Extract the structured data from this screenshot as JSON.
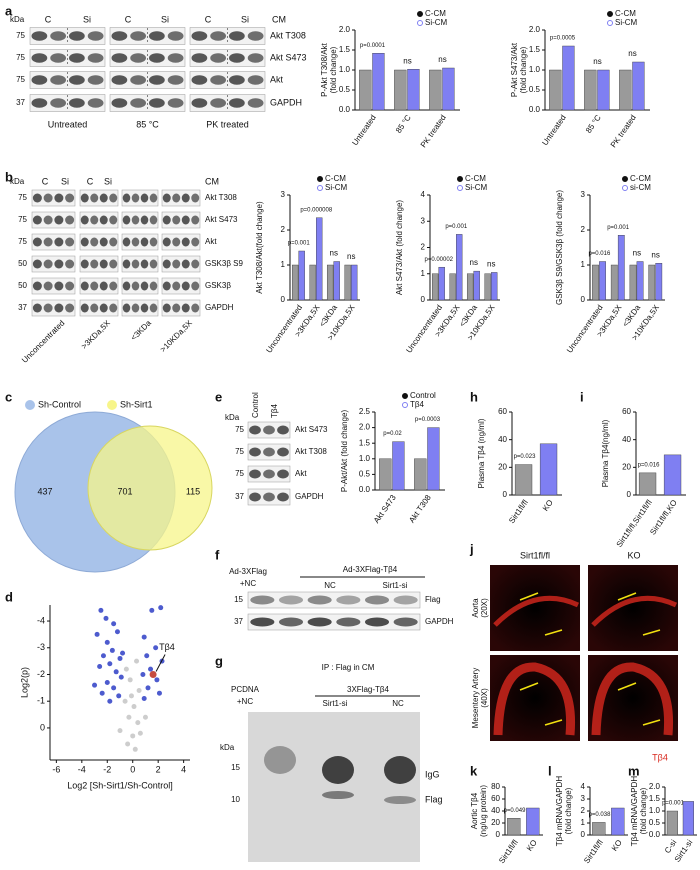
{
  "panels": {
    "a": {
      "label": "a",
      "kda": "kDa",
      "lanes": [
        "C",
        "Si",
        "C",
        "Si",
        "C",
        "Si"
      ],
      "treatment": "CM",
      "markers": [
        "75",
        "75",
        "75",
        "37"
      ],
      "rows": [
        "Akt T308",
        "Akt S473",
        "Akt",
        "GAPDH"
      ],
      "groups": [
        "Untreated",
        "85 °C",
        "PK treated"
      ]
    },
    "b": {
      "label": "b",
      "kda": "kDa",
      "lanes": [
        "C",
        "Si",
        "C",
        "Si"
      ],
      "treatment": "CM",
      "markers": [
        "75",
        "75",
        "75",
        "50",
        "50",
        "37"
      ],
      "rows": [
        "Akt T308",
        "Akt S473",
        "Akt",
        "GSK3β S9",
        "GSK3β",
        "GAPDH"
      ],
      "groups": [
        "Unconcentrated",
        ">3KDa,5X",
        "<3KDa",
        ">10KDa,5X"
      ]
    },
    "c": {
      "label": "c",
      "sets": [
        "Sh-Control",
        "Sh-Sirt1"
      ],
      "counts": [
        "437",
        "701",
        "115"
      ]
    },
    "d": {
      "label": "d"
    },
    "e": {
      "label": "e",
      "kda": "kDa",
      "lanes": [
        "Control",
        "Tβ4"
      ],
      "markers": [
        "75",
        "75",
        "75",
        "37"
      ],
      "rows": [
        "Akt S473",
        "Akt T308",
        "Akt",
        "GAPDH"
      ]
    },
    "f": {
      "label": "f",
      "control": [
        "Ad-3XFlag",
        "+NC"
      ],
      "construct": "Ad-3XFlag-Tβ4",
      "lanes": [
        "NC",
        "Sirt1-si"
      ],
      "markers": [
        "15",
        "37"
      ],
      "rows": [
        "Flag",
        "GAPDH"
      ]
    },
    "g": {
      "label": "g",
      "title": "IP : Flag in CM",
      "control": [
        "PCDNA",
        "+NC"
      ],
      "construct": "3XFlag-Tβ4",
      "lanes": [
        "Sirt1-si",
        "NC"
      ],
      "kda": "kDa",
      "markers": [
        "15",
        "10"
      ],
      "bands": [
        "IgG",
        "Flag"
      ]
    },
    "h": {
      "label": "h"
    },
    "i": {
      "label": "i"
    },
    "j": {
      "label": "j",
      "columns": [
        "Sirt1fl/fl",
        "KO"
      ],
      "rows": [
        [
          "Aorta",
          "(20X)"
        ],
        [
          "Mesentery Artery",
          "(40X)"
        ]
      ],
      "stain": "Tβ4"
    },
    "k": {
      "label": "k"
    },
    "l": {
      "label": "l"
    },
    "m": {
      "label": "m"
    }
  },
  "chart_data": [
    {
      "type": "bar",
      "ylabel": [
        "P-Akt T308/Akt",
        "(fold change)"
      ],
      "categories": [
        "Untreated",
        "85 °C",
        "PK treated"
      ],
      "series": [
        {
          "name": "C-CM",
          "color": "#9a9a9a",
          "values": [
            1.0,
            1.0,
            1.0
          ]
        },
        {
          "name": "Si-CM",
          "color": "#7f7ff2",
          "values": [
            1.42,
            1.02,
            1.05
          ]
        }
      ],
      "ylim": [
        0,
        2
      ],
      "yticks": [
        {
          "value": 0,
          "label": "0.0"
        },
        0.5,
        {
          "value": 1,
          "label": "1.0"
        },
        1.5,
        {
          "value": 2,
          "label": "2.0"
        }
      ],
      "annotations": [
        "p=0.0001",
        "ns",
        "ns"
      ]
    },
    {
      "type": "bar",
      "ylabel": [
        "P-Akt S473/Akt",
        "(fold change)"
      ],
      "categories": [
        "Untreated",
        "85 °C",
        "PK treated"
      ],
      "series": [
        {
          "name": "C-CM",
          "color": "#9a9a9a",
          "values": [
            1.0,
            1.0,
            1.0
          ]
        },
        {
          "name": "Si-CM",
          "color": "#7f7ff2",
          "values": [
            1.6,
            1.0,
            1.2
          ]
        }
      ],
      "ylim": [
        0,
        2
      ],
      "yticks": [
        {
          "value": 0,
          "label": "0.0"
        },
        0.5,
        {
          "value": 1,
          "label": "1.0"
        },
        1.5,
        {
          "value": 2,
          "label": "2.0"
        }
      ],
      "annotations": [
        "p=0.0005",
        "ns",
        "ns"
      ]
    },
    {
      "type": "bar",
      "ylabel": [
        "Akt T308/Akt(fold change)"
      ],
      "categories": [
        "Unconcentrated",
        ">3KDa,5X",
        "<3KDa",
        ">10KDa,5X"
      ],
      "series": [
        {
          "name": "C-CM",
          "color": "#9a9a9a",
          "values": [
            1.0,
            1.0,
            1.0,
            1.0
          ]
        },
        {
          "name": "Si-CM",
          "color": "#7f7ff2",
          "values": [
            1.4,
            2.35,
            1.1,
            1.0
          ]
        }
      ],
      "ylim": [
        0,
        3
      ],
      "yticks": [
        0,
        1,
        2,
        3
      ],
      "annotations": [
        "p=0.001",
        "p=0.000008",
        "ns",
        "ns"
      ]
    },
    {
      "type": "bar",
      "ylabel": [
        "Akt S473/Akt (fold change)"
      ],
      "categories": [
        "Unconcentrated",
        ">3KDa,5X",
        "<3KDa",
        ">10KDa,5X"
      ],
      "series": [
        {
          "name": "C-CM",
          "color": "#9a9a9a",
          "values": [
            1.0,
            1.0,
            1.0,
            1.0
          ]
        },
        {
          "name": "Si-CM",
          "color": "#7f7ff2",
          "values": [
            1.25,
            2.5,
            1.1,
            1.05
          ]
        }
      ],
      "ylim": [
        0,
        4
      ],
      "yticks": [
        0,
        1,
        2,
        3,
        4
      ],
      "annotations": [
        "p=0.00002",
        "p=0.001",
        "ns",
        "ns"
      ]
    },
    {
      "type": "bar",
      "ylabel": [
        "GSK3β S9/GSK3β (fold change)"
      ],
      "categories": [
        "Unconcentrated",
        ">3KDa,5X",
        "<3KDa",
        ">10KDa,5X"
      ],
      "series": [
        {
          "name": "C-CM",
          "color": "#9a9a9a",
          "values": [
            1.0,
            1.0,
            1.0,
            1.0
          ]
        },
        {
          "name": "si-CM",
          "color": "#7f7ff2",
          "values": [
            1.1,
            1.85,
            1.1,
            1.05
          ]
        }
      ],
      "ylim": [
        0,
        3
      ],
      "yticks": [
        0,
        1,
        2,
        3
      ],
      "annotations": [
        "p=0.016",
        "p=0.001",
        "ns",
        "ns"
      ]
    },
    {
      "type": "scatter",
      "xlabel": "Log2 [Sh-Sirt1/Sh-Control]",
      "ylabel": "Log2(p)",
      "xlim": [
        -6.5,
        4.5
      ],
      "xticks": [
        -6,
        -4,
        -2,
        0,
        2,
        4
      ],
      "ylim": [
        1.2,
        -4.6
      ],
      "yticks": [
        -4,
        -3,
        -2,
        -1,
        0
      ],
      "series": [
        {
          "color": "#c8c8c8",
          "x": [
            -0.5,
            0.3,
            -0.2,
            0.5,
            -0.6,
            0.1,
            -0.3,
            0.4,
            0,
            -0.4,
            0.6,
            0.2,
            -0.1,
            -1.0,
            1.0
          ],
          "values": [
            -2.2,
            -2.5,
            -1.8,
            -1.4,
            -1.0,
            -0.8,
            -0.4,
            -0.2,
            0.3,
            0.6,
            0.2,
            0.8,
            -1.2,
            0.1,
            -0.4
          ]
        },
        {
          "color": "#3a49c9",
          "x": [
            -2.5,
            -2.1,
            -1.5,
            -2.8,
            -1.2,
            -2.0,
            -1.6,
            -2.3,
            -1.0,
            -1.8,
            -2.6,
            -1.3,
            -0.9,
            -2.0,
            -1.5,
            -2.4,
            -1.1,
            -1.8,
            -3.0,
            -0.8,
            1.5,
            2.2,
            0.9,
            1.8,
            1.1,
            2.3,
            1.4,
            0.8,
            1.9,
            1.2,
            2.1,
            0.9
          ],
          "values": [
            -4.4,
            -4.1,
            -3.9,
            -3.5,
            -3.6,
            -3.2,
            -2.9,
            -2.7,
            -2.6,
            -2.4,
            -2.3,
            -2.1,
            -1.9,
            -1.7,
            -1.5,
            -1.3,
            -1.2,
            -1.0,
            -1.6,
            -2.8,
            -4.4,
            -4.5,
            -3.4,
            -3.0,
            -2.7,
            -2.5,
            -2.2,
            -2.0,
            -1.8,
            -1.5,
            -1.3,
            -1.1
          ]
        },
        {
          "color": "#c0392b",
          "x": [
            1.6
          ],
          "values": [
            -2.0
          ]
        }
      ],
      "annotations": [
        "Tβ4"
      ]
    },
    {
      "type": "bar",
      "ylabel": [
        "P-Akt/Akt (fold change)"
      ],
      "categories": [
        "Akt S473",
        "Akt T308"
      ],
      "series": [
        {
          "name": "Control",
          "color": "#9a9a9a",
          "values": [
            1.0,
            1.0
          ]
        },
        {
          "name": "Tβ4",
          "color": "#7f7ff2",
          "values": [
            1.55,
            2.0
          ]
        }
      ],
      "ylim": [
        0,
        2.5
      ],
      "yticks": [
        {
          "value": 0,
          "label": "0.0"
        },
        0.5,
        {
          "value": 1,
          "label": "1.0"
        },
        1.5,
        {
          "value": 2,
          "label": "2.0"
        },
        2.5
      ],
      "annotations": [
        "p=0.02",
        "p=0.0003"
      ]
    },
    {
      "type": "bar",
      "ylabel": [
        "Plasma Tβ4 (ng/ml)"
      ],
      "categories": [
        "Sirt1fl/fl",
        "KO"
      ],
      "values": [
        22,
        37
      ],
      "colors": [
        "#9a9a9a",
        "#7f7ff2"
      ],
      "ylim": [
        0,
        60
      ],
      "yticks": [
        0,
        20,
        40,
        60
      ],
      "annotations": [
        "p=0.023"
      ]
    },
    {
      "type": "bar",
      "ylabel": [
        "Plasma Tβ4(ng/ml)"
      ],
      "categories": [
        "Sirt1fl/fl,Sirt1fl/fl",
        "Sirt1fl/fl,KO"
      ],
      "values": [
        16,
        29
      ],
      "colors": [
        "#9a9a9a",
        "#7f7ff2"
      ],
      "ylim": [
        0,
        60
      ],
      "yticks": [
        0,
        20,
        40,
        60
      ],
      "annotations": [
        "p=0.016"
      ]
    },
    {
      "type": "bar",
      "ylabel": [
        "Aortic Tβ4",
        "(ng/ug protein)"
      ],
      "categories": [
        "Sirt1fl/fl",
        "KO"
      ],
      "values": [
        28,
        45
      ],
      "colors": [
        "#9a9a9a",
        "#7f7ff2"
      ],
      "ylim": [
        0,
        80
      ],
      "yticks": [
        0,
        20,
        40,
        60,
        80
      ],
      "annotations": [
        "p=0.049"
      ]
    },
    {
      "type": "bar",
      "ylabel": [
        "Tβ4 mRNA/GAPDH",
        "(fold change)"
      ],
      "categories": [
        "Sirt1fl/fl",
        "KO"
      ],
      "values": [
        1.05,
        2.25
      ],
      "colors": [
        "#9a9a9a",
        "#7f7ff2"
      ],
      "ylim": [
        0,
        4
      ],
      "yticks": [
        0,
        1,
        2,
        3,
        4
      ],
      "annotations": [
        "p=0.038"
      ]
    },
    {
      "type": "bar",
      "ylabel": [
        "Tβ4 mRNA/GAPDH",
        "(fold change)"
      ],
      "categories": [
        "C-si",
        "Sirt1-si"
      ],
      "values": [
        1.0,
        1.4
      ],
      "colors": [
        "#9a9a9a",
        "#7f7ff2"
      ],
      "ylim": [
        0,
        2
      ],
      "yticks": [
        {
          "value": 0,
          "label": "0.0"
        },
        0.5,
        {
          "value": 1,
          "label": "1.0"
        },
        1.5,
        {
          "value": 2,
          "label": "2.0"
        }
      ],
      "annotations": [
        "p=0.001"
      ]
    }
  ]
}
